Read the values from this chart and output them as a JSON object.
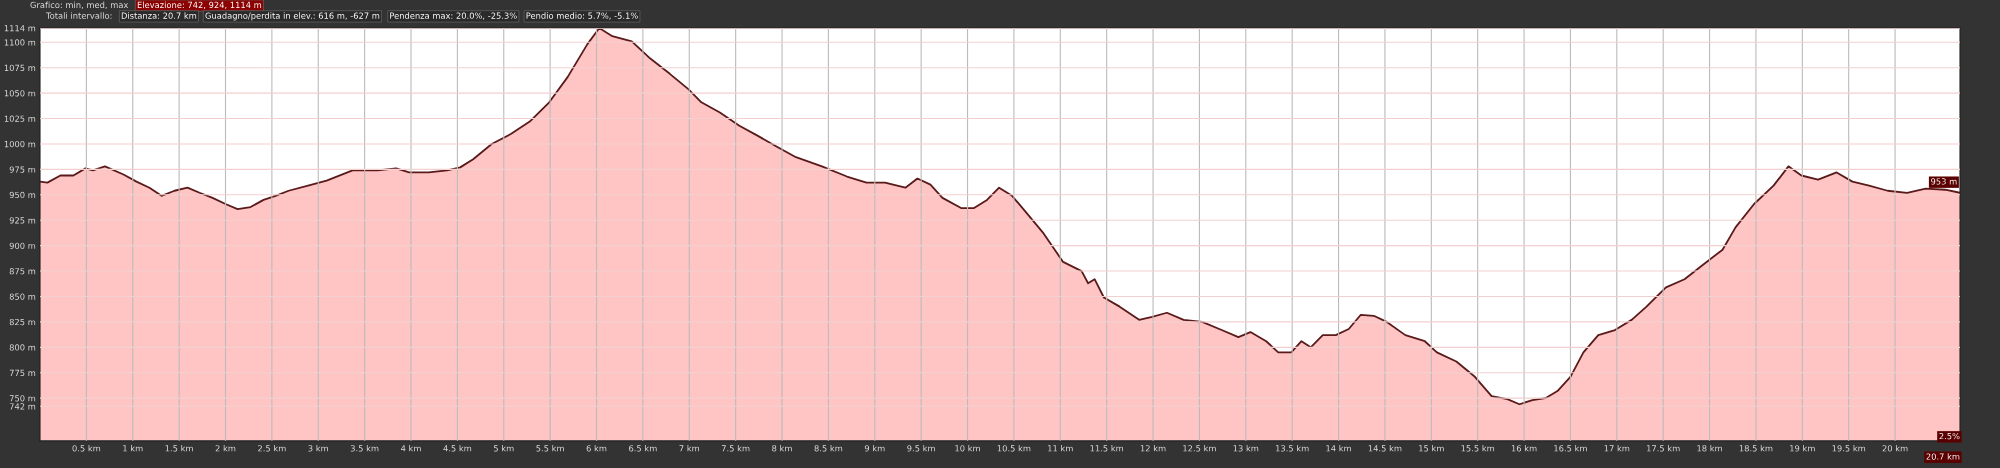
{
  "chart_data": {
    "type": "area",
    "x": [
      0,
      0.08,
      0.22,
      0.36,
      0.49,
      0.57,
      0.7,
      0.9,
      1.04,
      1.18,
      1.31,
      1.45,
      1.59,
      1.72,
      1.86,
      2.0,
      2.13,
      2.27,
      2.41,
      2.54,
      2.68,
      2.89,
      3.09,
      3.37,
      3.64,
      3.84,
      3.98,
      4.19,
      4.39,
      4.53,
      4.67,
      4.87,
      5.08,
      5.28,
      5.49,
      5.69,
      5.9,
      6.03,
      6.17,
      6.38,
      6.58,
      6.79,
      6.99,
      7.13,
      7.33,
      7.54,
      7.74,
      7.95,
      8.15,
      8.43,
      8.7,
      8.91,
      9.11,
      9.33,
      9.46,
      9.6,
      9.73,
      9.93,
      10.07,
      10.21,
      10.34,
      10.48,
      10.62,
      10.82,
      11.03,
      11.23,
      11.3,
      11.37,
      11.47,
      11.64,
      11.85,
      11.99,
      12.15,
      12.33,
      12.53,
      12.74,
      12.92,
      13.05,
      13.22,
      13.35,
      13.49,
      13.6,
      13.7,
      13.83,
      13.97,
      14.11,
      14.24,
      14.38,
      14.52,
      14.72,
      14.93,
      15.06,
      15.27,
      15.47,
      15.65,
      15.82,
      15.95,
      16.09,
      16.23,
      16.36,
      16.5,
      16.64,
      16.8,
      16.98,
      17.16,
      17.32,
      17.53,
      17.73,
      17.94,
      18.14,
      18.28,
      18.48,
      18.69,
      18.85,
      18.99,
      19.17,
      19.37,
      19.54,
      19.72,
      19.92,
      20.13,
      20.33,
      20.54,
      20.7
    ],
    "series": [
      {
        "color": "#5a1a1a",
        "values": [
          963,
          962,
          969,
          969,
          976,
          974,
          978,
          970,
          963,
          957,
          949,
          954,
          957,
          952,
          947,
          941,
          936,
          938,
          945,
          949,
          954,
          959,
          964,
          974,
          974,
          976,
          972,
          972,
          974,
          977,
          985,
          1000,
          1010,
          1022,
          1041,
          1066,
          1098,
          1114,
          1106,
          1101,
          1084,
          1069,
          1054,
          1041,
          1031,
          1018,
          1008,
          997,
          987,
          978,
          968,
          962,
          962,
          957,
          966,
          960,
          947,
          937,
          937,
          945,
          957,
          949,
          934,
          912,
          884,
          875,
          863,
          867,
          849,
          840,
          827,
          830,
          834,
          827,
          825,
          817,
          810,
          815,
          806,
          795,
          795,
          806,
          800,
          812,
          812,
          818,
          832,
          831,
          825,
          812,
          806,
          795,
          786,
          771,
          752,
          749,
          744,
          748,
          750,
          757,
          771,
          795,
          812,
          817,
          827,
          840,
          859,
          867,
          882,
          896,
          918,
          941,
          959,
          978,
          969,
          965,
          972,
          963,
          959,
          954,
          952,
          956,
          955,
          952
        ]
      }
    ],
    "xlim": [
      0,
      20.7
    ],
    "ylim": [
      708,
      1114
    ],
    "xticks": [
      {
        "value": 0.5,
        "label": "0.5 km"
      },
      {
        "value": 1,
        "label": "1 km"
      },
      {
        "value": 1.5,
        "label": "1.5 km"
      },
      {
        "value": 2,
        "label": "2 km"
      },
      {
        "value": 2.5,
        "label": "2.5 km"
      },
      {
        "value": 3,
        "label": "3 km"
      },
      {
        "value": 3.5,
        "label": "3.5 km"
      },
      {
        "value": 4,
        "label": "4 km"
      },
      {
        "value": 4.5,
        "label": "4.5 km"
      },
      {
        "value": 5,
        "label": "5 km"
      },
      {
        "value": 5.5,
        "label": "5.5 km"
      },
      {
        "value": 6,
        "label": "6 km"
      },
      {
        "value": 6.5,
        "label": "6.5 km"
      },
      {
        "value": 7,
        "label": "7 km"
      },
      {
        "value": 7.5,
        "label": "7.5 km"
      },
      {
        "value": 8,
        "label": "8 km"
      },
      {
        "value": 8.5,
        "label": "8.5 km"
      },
      {
        "value": 9,
        "label": "9 km"
      },
      {
        "value": 9.5,
        "label": "9.5 km"
      },
      {
        "value": 10,
        "label": "10 km"
      },
      {
        "value": 10.5,
        "label": "10.5 km"
      },
      {
        "value": 11,
        "label": "11 km"
      },
      {
        "value": 11.5,
        "label": "11.5 km"
      },
      {
        "value": 12,
        "label": "12 km"
      },
      {
        "value": 12.5,
        "label": "12.5 km"
      },
      {
        "value": 13,
        "label": "13 km"
      },
      {
        "value": 13.5,
        "label": "13.5 km"
      },
      {
        "value": 14,
        "label": "14 km"
      },
      {
        "value": 14.5,
        "label": "14.5 km"
      },
      {
        "value": 15,
        "label": "15 km"
      },
      {
        "value": 15.5,
        "label": "15.5 km"
      },
      {
        "value": 16,
        "label": "16 km"
      },
      {
        "value": 16.5,
        "label": "16.5 km"
      },
      {
        "value": 17,
        "label": "17 km"
      },
      {
        "value": 17.5,
        "label": "17.5 km"
      },
      {
        "value": 18,
        "label": "18 km"
      },
      {
        "value": 18.5,
        "label": "18.5 km"
      },
      {
        "value": 19,
        "label": "19 km"
      },
      {
        "value": 19.5,
        "label": "19.5 km"
      },
      {
        "value": 20,
        "label": "20 km"
      }
    ],
    "yticks": [
      {
        "value": 742,
        "label": "742 m"
      },
      {
        "value": 750,
        "label": "750 m"
      },
      {
        "value": 775,
        "label": "775 m"
      },
      {
        "value": 800,
        "label": "800 m"
      },
      {
        "value": 825,
        "label": "825 m"
      },
      {
        "value": 850,
        "label": "850 m"
      },
      {
        "value": 875,
        "label": "875 m"
      },
      {
        "value": 900,
        "label": "900 m"
      },
      {
        "value": 925,
        "label": "925 m"
      },
      {
        "value": 950,
        "label": "950 m"
      },
      {
        "value": 975,
        "label": "975 m"
      },
      {
        "value": 1000,
        "label": "1000 m"
      },
      {
        "value": 1025,
        "label": "1025 m"
      },
      {
        "value": 1050,
        "label": "1050 m"
      },
      {
        "value": 1075,
        "label": "1075 m"
      },
      {
        "value": 1100,
        "label": "1100 m"
      },
      {
        "value": 1114,
        "label": "1114 m"
      }
    ],
    "grid": true,
    "annotations": [
      "Grafico: min, med, max",
      "Elevazione: 742, 924, 1114 m",
      "Totali intervallo:",
      "Distanza: 20.7 km",
      "Guadagno/perdita in elev.: 616 m, -627 m",
      "Pendenza max: 20.0%, -25.3%",
      "Pendio medio: 5.7%, -5.1%",
      {
        "text": "953 m",
        "x": 20.7,
        "y": 953
      },
      "2.5%",
      "20.7 km"
    ]
  }
}
